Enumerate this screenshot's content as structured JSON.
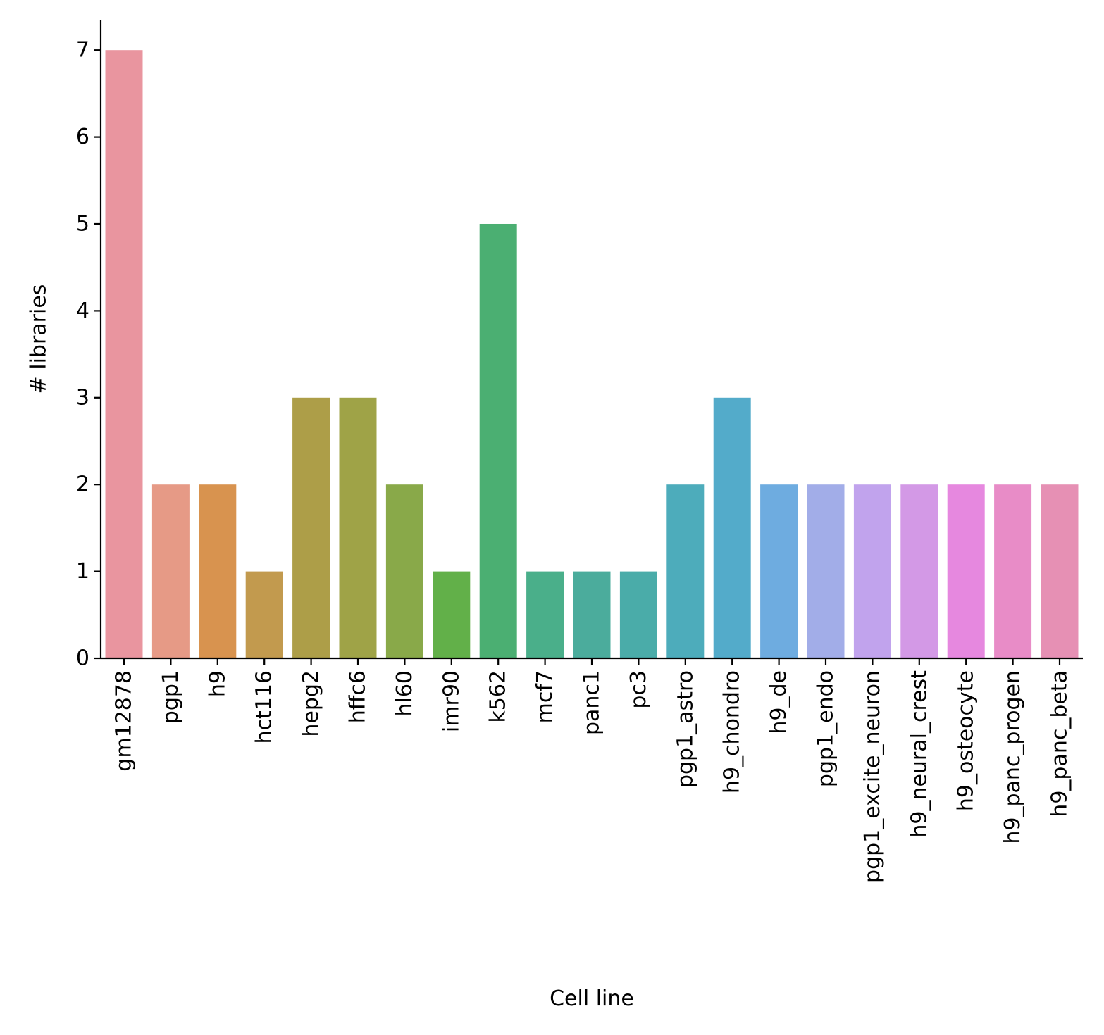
{
  "chart_data": {
    "type": "bar",
    "title": "",
    "xlabel": "Cell line",
    "ylabel": "# libraries",
    "ylim": [
      0,
      7.35
    ],
    "yticks": [
      0,
      1,
      2,
      3,
      4,
      5,
      6,
      7
    ],
    "grid": false,
    "legend": "none",
    "categories": [
      "gm12878",
      "pgp1",
      "h9",
      "hct116",
      "hepg2",
      "hffc6",
      "hl60",
      "imr90",
      "k562",
      "mcf7",
      "panc1",
      "pc3",
      "pgp1_astro",
      "h9_chondro",
      "h9_de",
      "pgp1_endo",
      "pgp1_excite_neuron",
      "h9_neural_crest",
      "h9_osteocyte",
      "h9_panc_progen",
      "h9_panc_beta"
    ],
    "values": [
      7,
      2,
      2,
      1,
      3,
      3,
      2,
      1,
      5,
      1,
      1,
      1,
      2,
      3,
      2,
      2,
      2,
      2,
      2,
      2,
      2
    ],
    "colors": [
      "#e9959f",
      "#e69a86",
      "#d8934f",
      "#c29a4e",
      "#ad9e48",
      "#9fa347",
      "#89a949",
      "#62b049",
      "#4baf72",
      "#4aaf8a",
      "#4bac9c",
      "#4aaca9",
      "#4dacbb",
      "#53abca",
      "#6eace0",
      "#a2ade8",
      "#c1a3ed",
      "#d399e6",
      "#e688df",
      "#e88cc7",
      "#e690b4"
    ]
  }
}
